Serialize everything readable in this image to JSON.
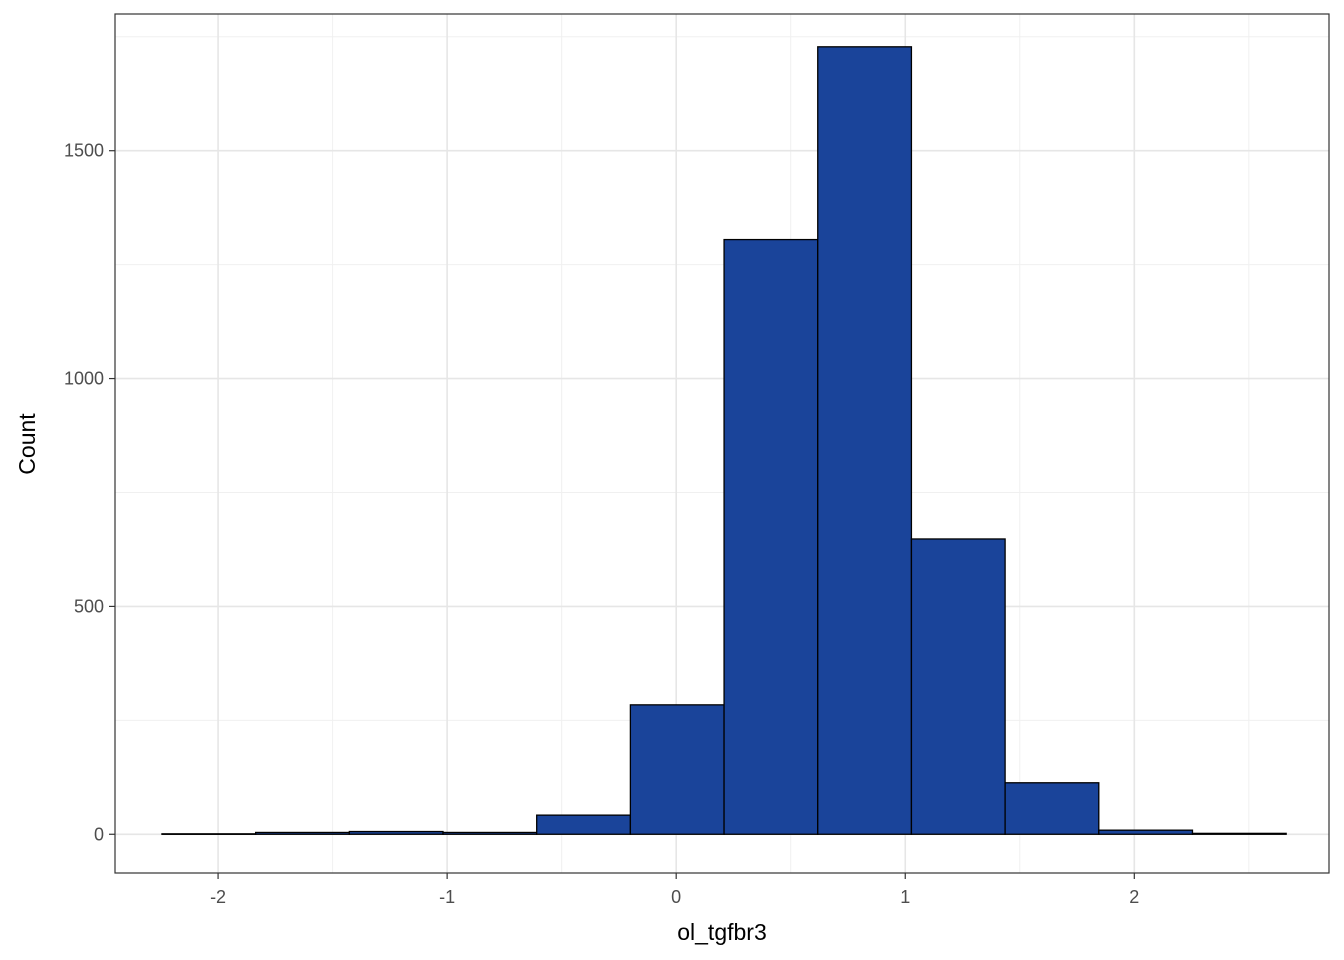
{
  "chart_data": {
    "type": "bar",
    "subtype": "histogram",
    "title": "",
    "xlabel": "ol_tgfbr3",
    "ylabel": "Count",
    "xlim": [
      -2.45,
      2.85
    ],
    "ylim": [
      -85,
      1800
    ],
    "x_ticks": [
      -2,
      -1,
      0,
      1,
      2
    ],
    "y_ticks": [
      0,
      500,
      1000,
      1500
    ],
    "bin_width": 0.409,
    "bins": [
      {
        "x0": -2.245,
        "x1": -1.836,
        "count": 1
      },
      {
        "x0": -1.836,
        "x1": -1.427,
        "count": 4
      },
      {
        "x0": -1.427,
        "x1": -1.018,
        "count": 6
      },
      {
        "x0": -1.018,
        "x1": -0.609,
        "count": 4
      },
      {
        "x0": -0.609,
        "x1": -0.2,
        "count": 42
      },
      {
        "x0": -0.2,
        "x1": 0.209,
        "count": 284
      },
      {
        "x0": 0.209,
        "x1": 0.618,
        "count": 1305
      },
      {
        "x0": 0.618,
        "x1": 1.027,
        "count": 1728
      },
      {
        "x0": 1.027,
        "x1": 1.436,
        "count": 648
      },
      {
        "x0": 1.436,
        "x1": 1.845,
        "count": 113
      },
      {
        "x0": 1.845,
        "x1": 2.254,
        "count": 9
      },
      {
        "x0": 2.254,
        "x1": 2.663,
        "count": 2
      }
    ],
    "fill_color": "#1a449a",
    "border_color": "#000000",
    "grid": true,
    "legend": "none"
  }
}
